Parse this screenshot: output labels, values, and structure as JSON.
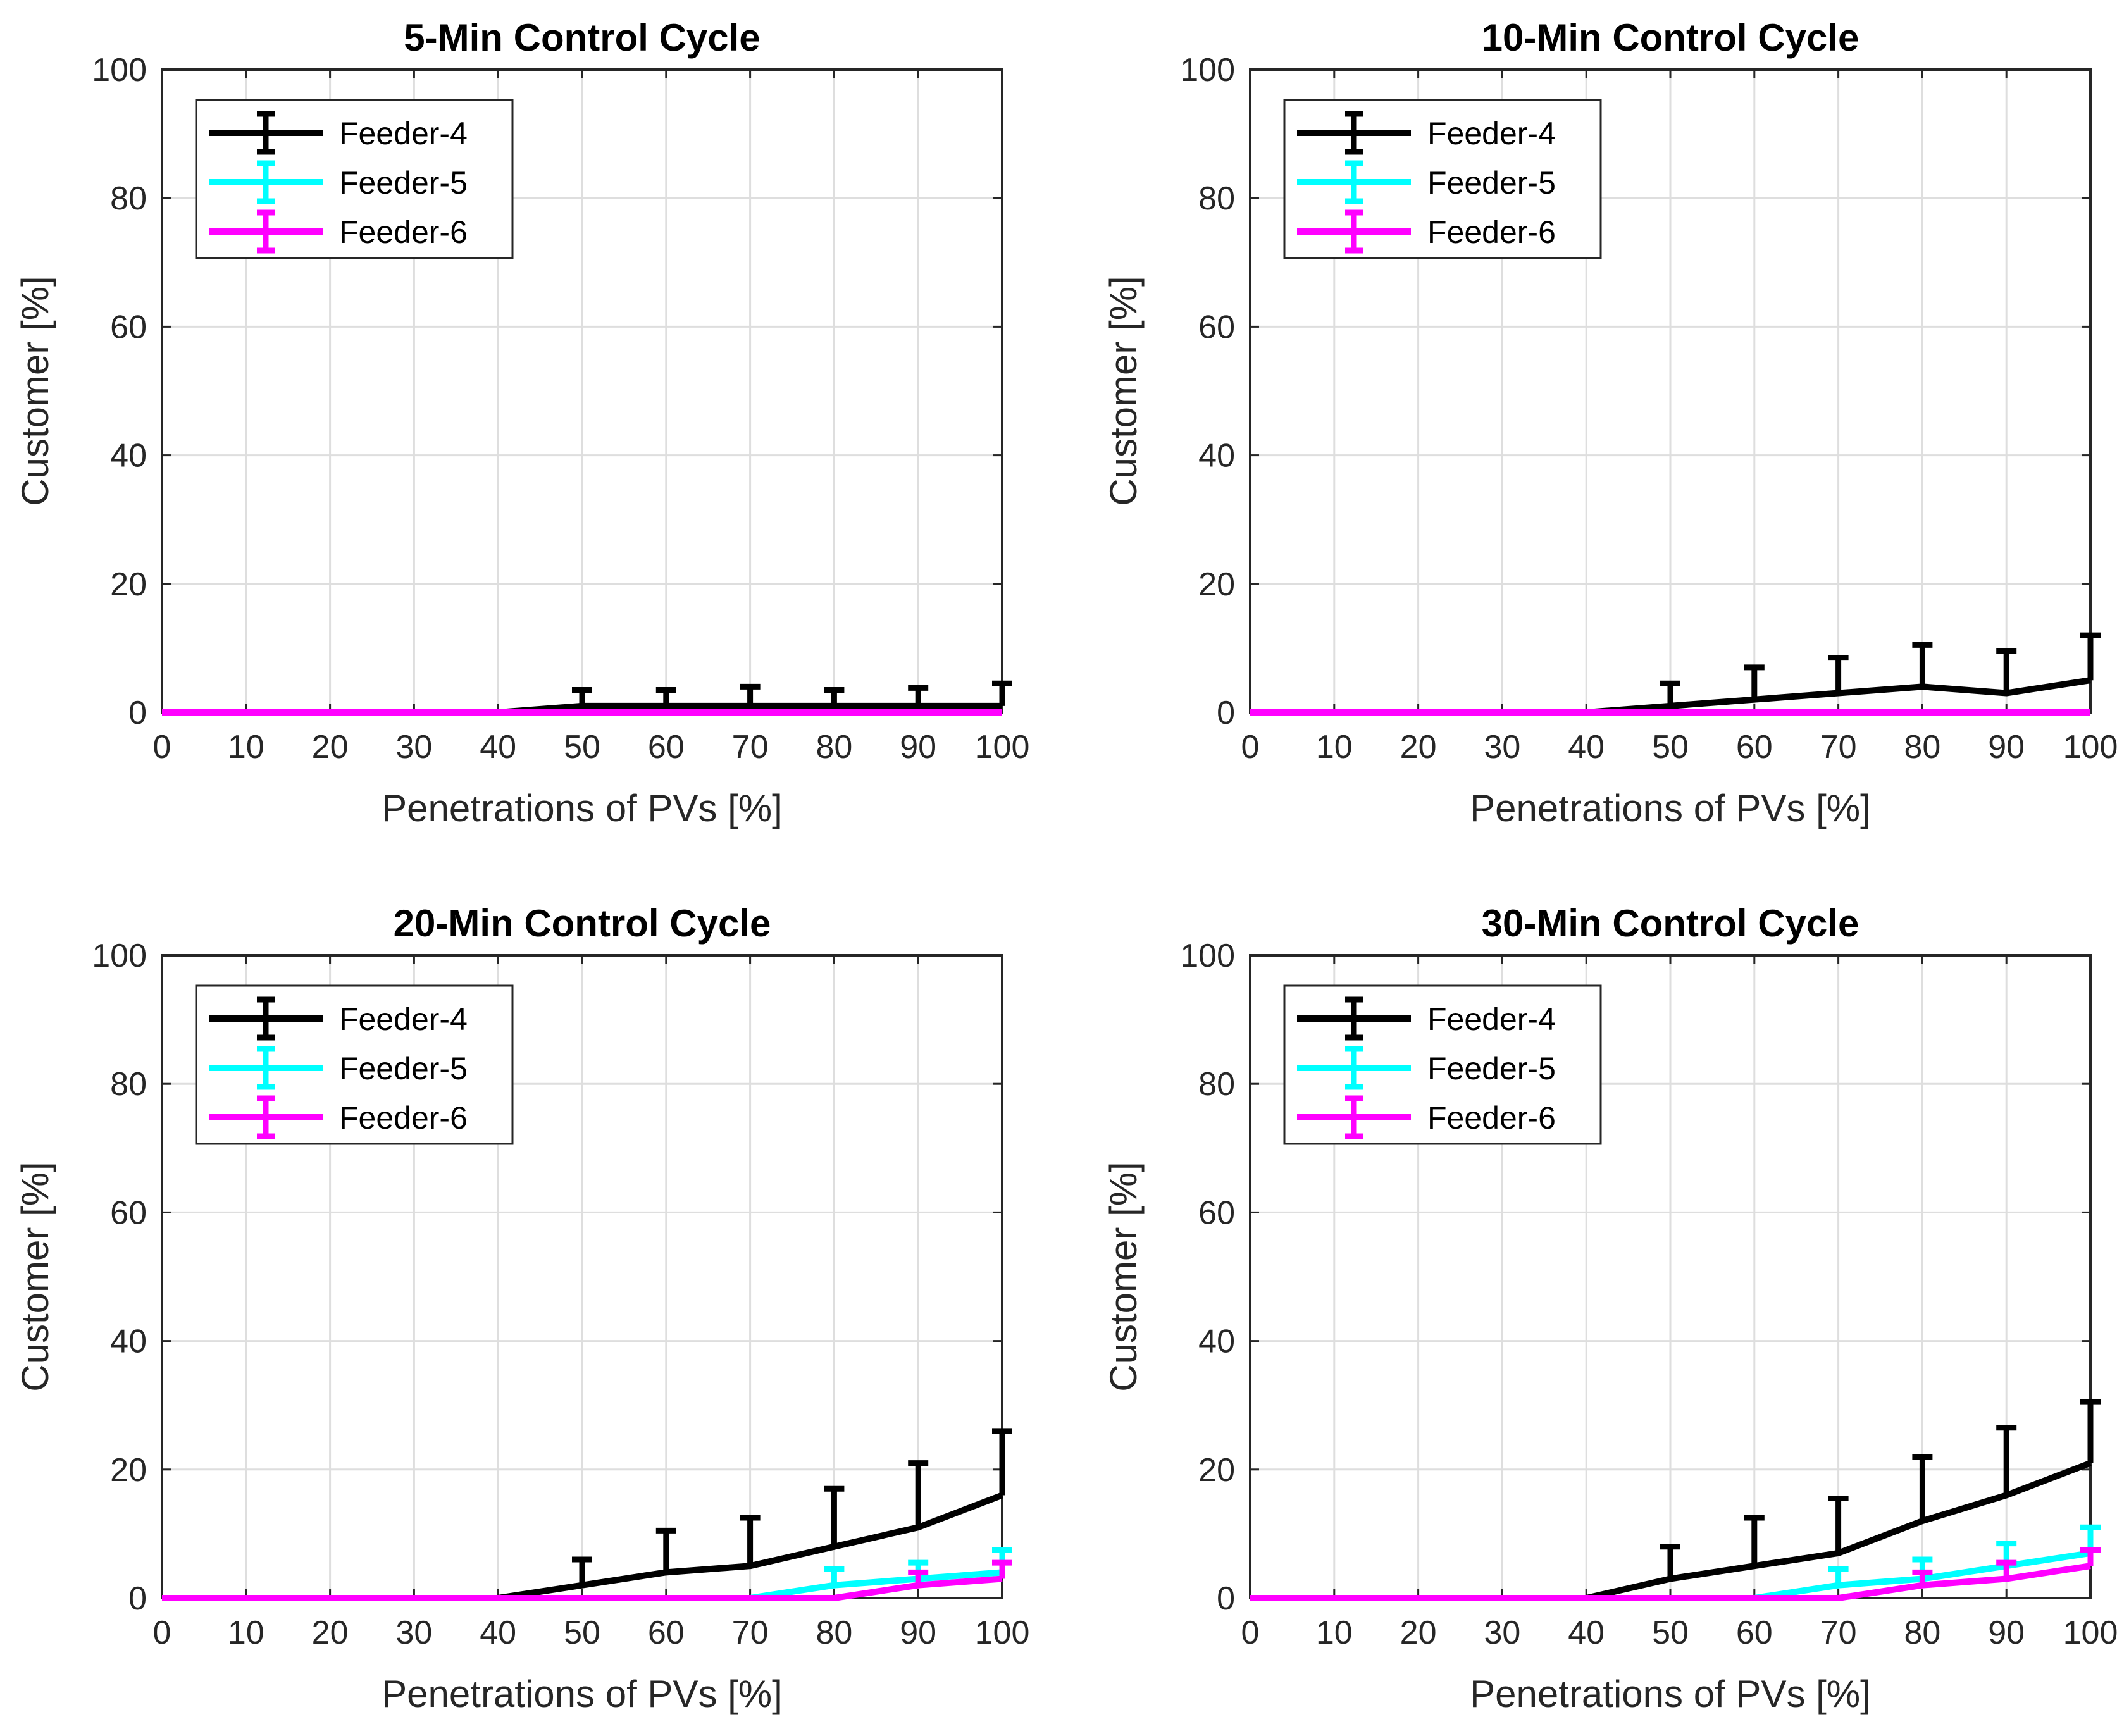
{
  "chart_data": [
    {
      "type": "line",
      "title": "5-Min Control Cycle",
      "xlabel": "Penetrations of PVs [%]",
      "ylabel": "Customer [%]",
      "xlim": [
        0,
        100
      ],
      "ylim": [
        0,
        100
      ],
      "xticks": [
        0,
        10,
        20,
        30,
        40,
        50,
        60,
        70,
        80,
        90,
        100
      ],
      "yticks": [
        0,
        20,
        40,
        60,
        80,
        100
      ],
      "grid": true,
      "legend_position": "top-left",
      "x": [
        0,
        10,
        20,
        30,
        40,
        50,
        60,
        70,
        80,
        90,
        100
      ],
      "series": [
        {
          "name": "Feeder-4",
          "color": "#000000",
          "values": [
            0,
            0,
            0,
            0,
            0,
            1,
            1,
            1,
            1,
            1,
            1
          ],
          "error_upper": [
            0,
            0,
            0,
            0,
            0,
            3.5,
            3.5,
            4,
            3.5,
            3.8,
            4.5
          ]
        },
        {
          "name": "Feeder-5",
          "color": "#00FFFF",
          "values": [
            0,
            0,
            0,
            0,
            0,
            0,
            0,
            0,
            0,
            0,
            0
          ],
          "error_upper": [
            0,
            0,
            0,
            0,
            0,
            0,
            0,
            0,
            0,
            0,
            0
          ]
        },
        {
          "name": "Feeder-6",
          "color": "#FF00FF",
          "values": [
            0,
            0,
            0,
            0,
            0,
            0,
            0,
            0,
            0,
            0,
            0
          ],
          "error_upper": [
            0,
            0,
            0,
            0,
            0,
            0,
            0,
            0,
            0,
            0,
            0
          ]
        }
      ]
    },
    {
      "type": "line",
      "title": "10-Min Control Cycle",
      "xlabel": "Penetrations of PVs [%]",
      "ylabel": "Customer [%]",
      "xlim": [
        0,
        100
      ],
      "ylim": [
        0,
        100
      ],
      "xticks": [
        0,
        10,
        20,
        30,
        40,
        50,
        60,
        70,
        80,
        90,
        100
      ],
      "yticks": [
        0,
        20,
        40,
        60,
        80,
        100
      ],
      "grid": true,
      "legend_position": "top-left",
      "x": [
        0,
        10,
        20,
        30,
        40,
        50,
        60,
        70,
        80,
        90,
        100
      ],
      "series": [
        {
          "name": "Feeder-4",
          "color": "#000000",
          "values": [
            0,
            0,
            0,
            0,
            0,
            1,
            2,
            3,
            4,
            3,
            5
          ],
          "error_upper": [
            0,
            0,
            0,
            0,
            0,
            4.5,
            7,
            8.5,
            10.5,
            9.5,
            12
          ]
        },
        {
          "name": "Feeder-5",
          "color": "#00FFFF",
          "values": [
            0,
            0,
            0,
            0,
            0,
            0,
            0,
            0,
            0,
            0,
            0
          ],
          "error_upper": [
            0,
            0,
            0,
            0,
            0,
            0,
            0,
            0,
            0,
            0,
            0
          ]
        },
        {
          "name": "Feeder-6",
          "color": "#FF00FF",
          "values": [
            0,
            0,
            0,
            0,
            0,
            0,
            0,
            0,
            0,
            0,
            0
          ],
          "error_upper": [
            0,
            0,
            0,
            0,
            0,
            0,
            0,
            0,
            0,
            0,
            0
          ]
        }
      ]
    },
    {
      "type": "line",
      "title": "20-Min Control Cycle",
      "xlabel": "Penetrations of PVs [%]",
      "ylabel": "Customer [%]",
      "xlim": [
        0,
        100
      ],
      "ylim": [
        0,
        100
      ],
      "xticks": [
        0,
        10,
        20,
        30,
        40,
        50,
        60,
        70,
        80,
        90,
        100
      ],
      "yticks": [
        0,
        20,
        40,
        60,
        80,
        100
      ],
      "grid": true,
      "legend_position": "top-left",
      "x": [
        0,
        10,
        20,
        30,
        40,
        50,
        60,
        70,
        80,
        90,
        100
      ],
      "series": [
        {
          "name": "Feeder-4",
          "color": "#000000",
          "values": [
            0,
            0,
            0,
            0,
            0,
            2,
            4,
            5,
            8,
            11,
            16
          ],
          "error_upper": [
            0,
            0,
            0,
            0,
            0,
            6,
            10.5,
            12.5,
            17,
            21,
            26
          ]
        },
        {
          "name": "Feeder-5",
          "color": "#00FFFF",
          "values": [
            0,
            0,
            0,
            0,
            0,
            0,
            0,
            0,
            2,
            3,
            4
          ],
          "error_upper": [
            0,
            0,
            0,
            0,
            0,
            0,
            0,
            0,
            4.5,
            5.5,
            7.5
          ]
        },
        {
          "name": "Feeder-6",
          "color": "#FF00FF",
          "values": [
            0,
            0,
            0,
            0,
            0,
            0,
            0,
            0,
            0,
            2,
            3
          ],
          "error_upper": [
            0,
            0,
            0,
            0,
            0,
            0,
            0,
            0,
            0,
            4,
            5.5
          ]
        }
      ]
    },
    {
      "type": "line",
      "title": "30-Min Control Cycle",
      "xlabel": "Penetrations of PVs [%]",
      "ylabel": "Customer [%]",
      "xlim": [
        0,
        100
      ],
      "ylim": [
        0,
        100
      ],
      "xticks": [
        0,
        10,
        20,
        30,
        40,
        50,
        60,
        70,
        80,
        90,
        100
      ],
      "yticks": [
        0,
        20,
        40,
        60,
        80,
        100
      ],
      "grid": true,
      "legend_position": "top-left",
      "x": [
        0,
        10,
        20,
        30,
        40,
        50,
        60,
        70,
        80,
        90,
        100
      ],
      "series": [
        {
          "name": "Feeder-4",
          "color": "#000000",
          "values": [
            0,
            0,
            0,
            0,
            0,
            3,
            5,
            7,
            12,
            16,
            21
          ],
          "error_upper": [
            0,
            0,
            0,
            0,
            0,
            8,
            12.5,
            15.5,
            22,
            26.5,
            30.5
          ]
        },
        {
          "name": "Feeder-5",
          "color": "#00FFFF",
          "values": [
            0,
            0,
            0,
            0,
            0,
            0,
            0,
            2,
            3,
            5,
            7
          ],
          "error_upper": [
            0,
            0,
            0,
            0,
            0,
            0,
            0,
            4.5,
            6,
            8.5,
            11
          ]
        },
        {
          "name": "Feeder-6",
          "color": "#FF00FF",
          "values": [
            0,
            0,
            0,
            0,
            0,
            0,
            0,
            0,
            2,
            3,
            5
          ],
          "error_upper": [
            0,
            0,
            0,
            0,
            0,
            0,
            0,
            0,
            4,
            5.5,
            7.5
          ]
        }
      ]
    }
  ]
}
